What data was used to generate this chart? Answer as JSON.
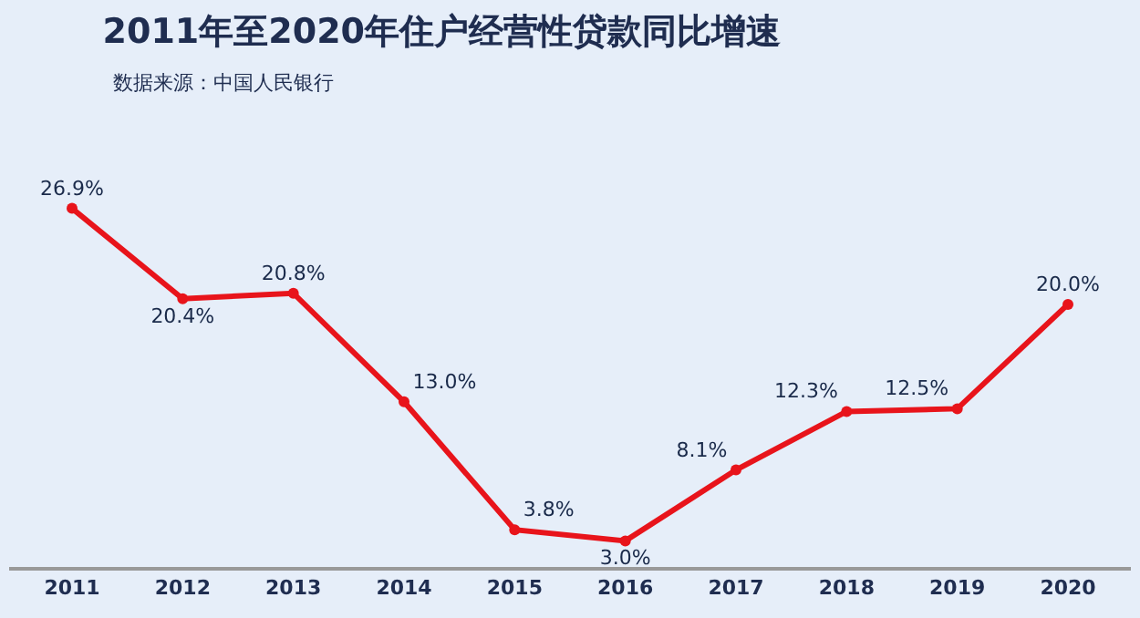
{
  "chart_data": {
    "type": "line",
    "title": "2011年至2020年住户经营性贷款同比增速",
    "subtitle": "数据来源：中国人民银行",
    "categories": [
      "2011",
      "2012",
      "2013",
      "2014",
      "2015",
      "2016",
      "2017",
      "2018",
      "2019",
      "2020"
    ],
    "series": [
      {
        "color": "#e8141b",
        "values": [
          26.9,
          20.4,
          20.8,
          13.0,
          3.8,
          3.0,
          8.1,
          12.3,
          12.5,
          20.0
        ],
        "value_labels": [
          "26.9%",
          "20.4%",
          "20.8%",
          "13.0%",
          "3.8%",
          "3.0%",
          "8.1%",
          "12.3%",
          "12.5%",
          "20.0%"
        ]
      }
    ],
    "marker": "circle",
    "line_style": "solid",
    "grid": false,
    "tick_labels": "x"
  }
}
